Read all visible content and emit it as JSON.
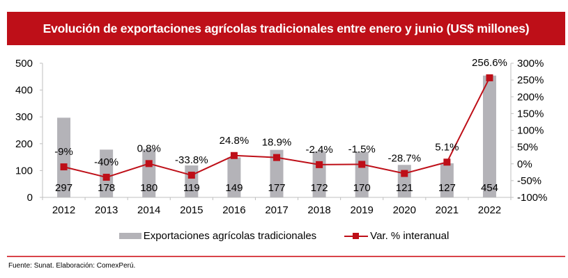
{
  "chart_data": {
    "type": "bar+line",
    "title": "Evolución de exportaciones agrícolas tradicionales entre enero y junio (US$ millones)",
    "categories": [
      "2012",
      "2013",
      "2014",
      "2015",
      "2016",
      "2017",
      "2018",
      "2019",
      "2020",
      "2021",
      "2022"
    ],
    "series": [
      {
        "name": "Exportaciones agrícolas tradicionales",
        "type": "bar",
        "axis": "left",
        "color": "#b4b3b8",
        "values": [
          297,
          178,
          180,
          119,
          149,
          177,
          172,
          170,
          121,
          127,
          454
        ],
        "labels": [
          "297",
          "178",
          "180",
          "119",
          "149",
          "177",
          "172",
          "170",
          "121",
          "127",
          "454"
        ]
      },
      {
        "name": "Var. % interanual",
        "type": "line",
        "axis": "right",
        "color": "#be0f18",
        "values": [
          -9,
          -40,
          0.8,
          -33.8,
          24.8,
          18.9,
          -2.4,
          -1.5,
          -28.7,
          5.1,
          256.6
        ],
        "labels": [
          "-9%",
          "-40%",
          "0.8%",
          "-33.8%",
          "24.8%",
          "18.9%",
          "-2.4%",
          "-1.5%",
          "-28.7%",
          "5.1%",
          "256.6%"
        ]
      }
    ],
    "y_left": {
      "min": 0,
      "max": 500,
      "ticks": [
        "0",
        "100",
        "200",
        "300",
        "400",
        "500"
      ]
    },
    "y_right": {
      "min": -100,
      "max": 300,
      "ticks": [
        "-100%",
        "-50%",
        "0%",
        "50%",
        "100%",
        "150%",
        "200%",
        "250%",
        "300%"
      ]
    },
    "grid": false,
    "legend": "bottom"
  },
  "source": "Fuente: Sunat. Elaboración: ComexPerú."
}
